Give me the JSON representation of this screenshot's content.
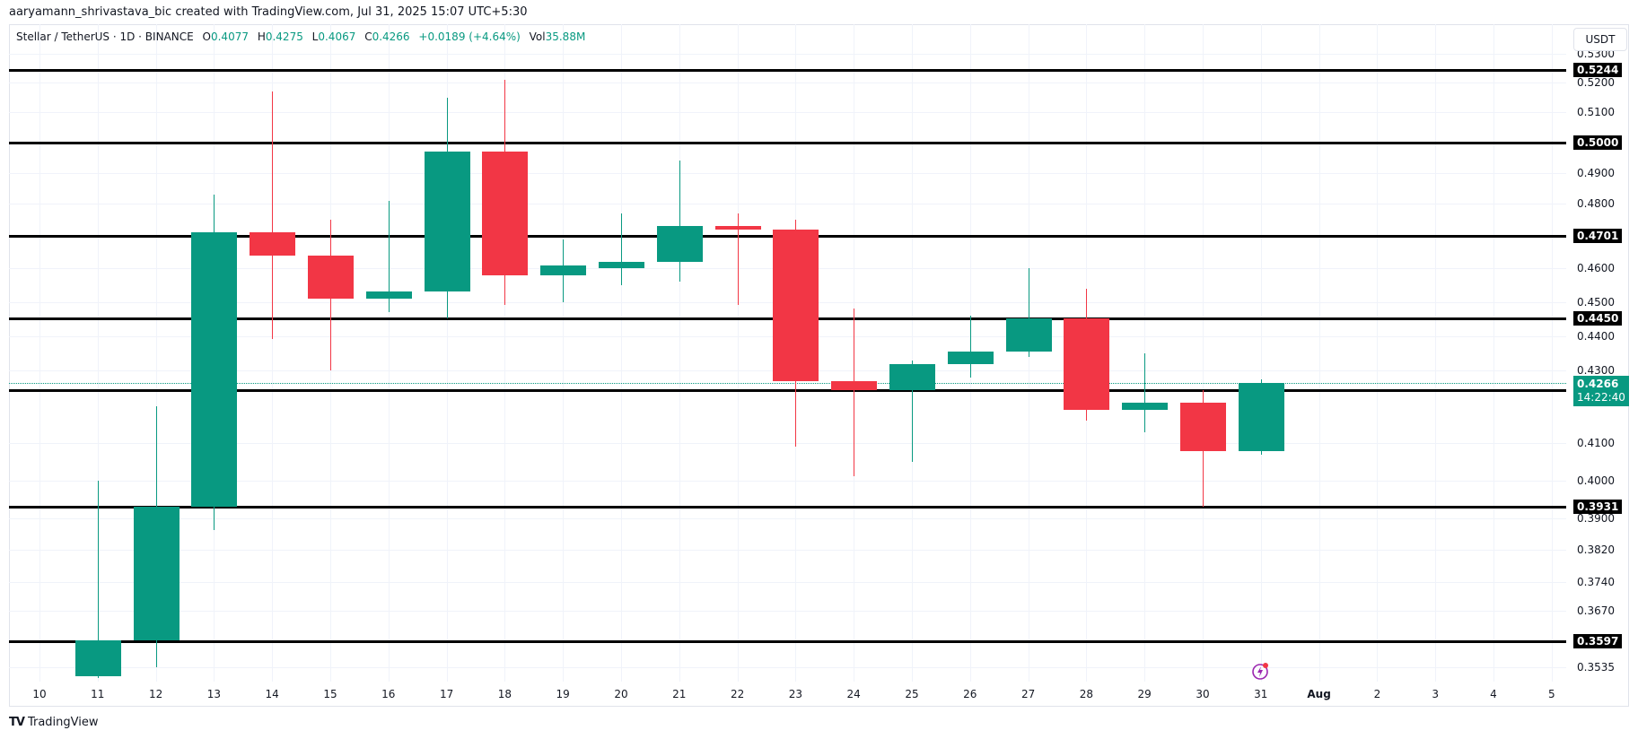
{
  "credit": "aaryamann_shrivastava_bic created with TradingView.com, Jul 31, 2025 15:07 UTC+5:30",
  "legend": {
    "symbol": "Stellar / TetherUS · 1D · BINANCE",
    "o_label": "O",
    "o_value": "0.4077",
    "h_label": "H",
    "h_value": "0.4275",
    "l_label": "L",
    "l_value": "0.4067",
    "c_label": "C",
    "c_value": "0.4266",
    "change": "+0.0189 (+4.64%)",
    "vol_label": "Vol",
    "vol_value": "35.88M"
  },
  "currency_button": "USDT",
  "current_price": {
    "value": "0.4266",
    "countdown": "14:22:40",
    "color": "#089981"
  },
  "branding": {
    "name": "TradingView"
  },
  "colors": {
    "up": "#089981",
    "down": "#F23645",
    "level": "#000000",
    "grid": "#F0F3FA"
  },
  "chart_data": {
    "type": "candlestick",
    "title": "Stellar / TetherUS · 1D · BINANCE",
    "xlabel": "",
    "ylabel": "USDT",
    "y_scale": "log",
    "ylim": [
      0.3505,
      0.533
    ],
    "x_ticks": [
      "10",
      "11",
      "12",
      "13",
      "14",
      "15",
      "16",
      "17",
      "18",
      "19",
      "20",
      "21",
      "22",
      "23",
      "24",
      "25",
      "26",
      "27",
      "28",
      "29",
      "30",
      "31",
      "Aug",
      "2",
      "3",
      "4",
      "5"
    ],
    "y_ticks": [
      "0.5300",
      "0.5200",
      "0.5100",
      "0.4900",
      "0.4800",
      "0.4600",
      "0.4500",
      "0.4400",
      "0.4300",
      "0.4100",
      "0.4000",
      "0.3900",
      "0.3820",
      "0.3740",
      "0.3670",
      "0.3535"
    ],
    "horizontal_levels": [
      "0.5244",
      "0.5000",
      "0.4701",
      "0.4450",
      "0.4245",
      "0.3931",
      "0.3597"
    ],
    "candles": [
      {
        "date": "Jul 11",
        "open": 0.3515,
        "high": 0.4,
        "low": 0.351,
        "close": 0.36
      },
      {
        "date": "Jul 12",
        "open": 0.36,
        "high": 0.42,
        "low": 0.3535,
        "close": 0.3931
      },
      {
        "date": "Jul 13",
        "open": 0.3931,
        "high": 0.483,
        "low": 0.387,
        "close": 0.471
      },
      {
        "date": "Jul 14",
        "open": 0.471,
        "high": 0.517,
        "low": 0.439,
        "close": 0.464
      },
      {
        "date": "Jul 15",
        "open": 0.464,
        "high": 0.475,
        "low": 0.43,
        "close": 0.451
      },
      {
        "date": "Jul 16",
        "open": 0.451,
        "high": 0.481,
        "low": 0.447,
        "close": 0.453
      },
      {
        "date": "Jul 17",
        "open": 0.453,
        "high": 0.515,
        "low": 0.445,
        "close": 0.497
      },
      {
        "date": "Jul 18",
        "open": 0.497,
        "high": 0.521,
        "low": 0.449,
        "close": 0.458
      },
      {
        "date": "Jul 19",
        "open": 0.458,
        "high": 0.469,
        "low": 0.45,
        "close": 0.461
      },
      {
        "date": "Jul 20",
        "open": 0.46,
        "high": 0.477,
        "low": 0.455,
        "close": 0.462
      },
      {
        "date": "Jul 21",
        "open": 0.462,
        "high": 0.494,
        "low": 0.456,
        "close": 0.473
      },
      {
        "date": "Jul 22",
        "open": 0.473,
        "high": 0.477,
        "low": 0.449,
        "close": 0.472
      },
      {
        "date": "Jul 23",
        "open": 0.472,
        "high": 0.475,
        "low": 0.409,
        "close": 0.427
      },
      {
        "date": "Jul 24",
        "open": 0.427,
        "high": 0.448,
        "low": 0.401,
        "close": 0.4245
      },
      {
        "date": "Jul 25",
        "open": 0.4245,
        "high": 0.433,
        "low": 0.405,
        "close": 0.432
      },
      {
        "date": "Jul 26",
        "open": 0.432,
        "high": 0.446,
        "low": 0.428,
        "close": 0.4355
      },
      {
        "date": "Jul 27",
        "open": 0.4355,
        "high": 0.46,
        "low": 0.434,
        "close": 0.445
      },
      {
        "date": "Jul 28",
        "open": 0.445,
        "high": 0.454,
        "low": 0.416,
        "close": 0.419
      },
      {
        "date": "Jul 29",
        "open": 0.419,
        "high": 0.435,
        "low": 0.413,
        "close": 0.421
      },
      {
        "date": "Jul 30",
        "open": 0.421,
        "high": 0.4245,
        "low": 0.3931,
        "close": 0.4077
      },
      {
        "date": "Jul 31",
        "open": 0.4077,
        "high": 0.4275,
        "low": 0.4067,
        "close": 0.4266
      }
    ],
    "volume": "35.88M",
    "grid": true,
    "legend_position": "top-left"
  }
}
